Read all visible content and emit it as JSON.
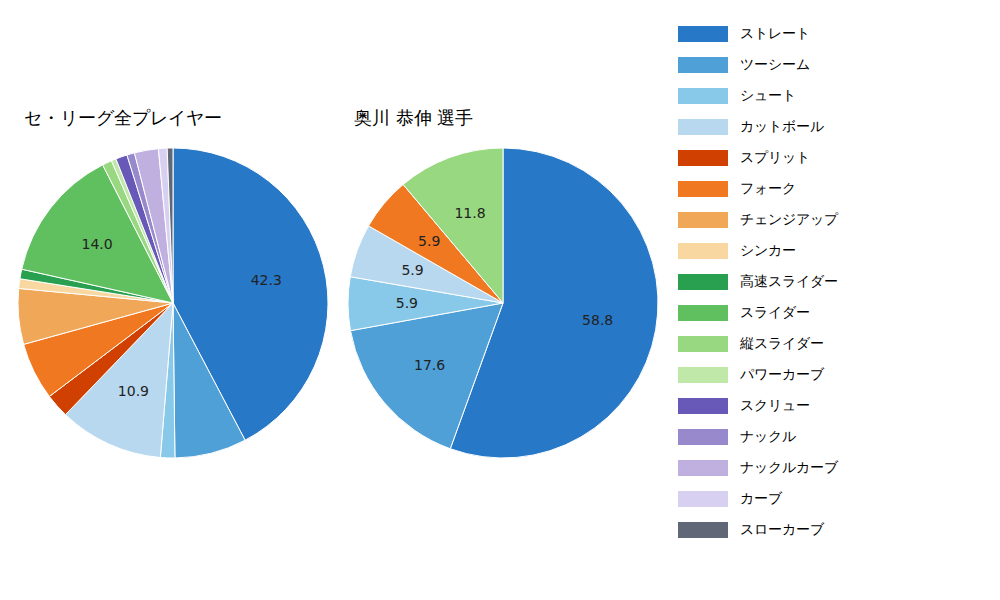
{
  "chart_data": [
    {
      "type": "pie",
      "title": "セ・リーグ全プレイヤー",
      "categories": [
        "ストレート",
        "ツーシーム",
        "シュート",
        "カットボール",
        "スプリット",
        "フォーク",
        "チェンジアップ",
        "シンカー",
        "高速スライダー",
        "スライダー",
        "縦スライダー",
        "パワーカーブ",
        "スクリュー",
        "ナックル",
        "ナックルカーブ",
        "カーブ",
        "スローカーブ"
      ],
      "values": [
        42.3,
        7.5,
        1.5,
        10.9,
        2.5,
        6.0,
        5.8,
        1.0,
        1.0,
        14.0,
        1.0,
        0.5,
        1.2,
        0.8,
        2.5,
        0.9,
        0.6
      ],
      "value_labels": [
        "42.3",
        null,
        null,
        "10.9",
        null,
        null,
        null,
        null,
        null,
        "14.0",
        null,
        null,
        null,
        null,
        null,
        null,
        null
      ],
      "colors": [
        "#2878c8",
        "#50a0d8",
        "#88c8e8",
        "#b8d8f0",
        "#d04000",
        "#f07820",
        "#f0a858",
        "#f8d8a0",
        "#28a050",
        "#60c060",
        "#98d880",
        "#c0e8a8",
        "#6858b8",
        "#9888cc",
        "#c0b0e0",
        "#d8d0f0",
        "#606878"
      ],
      "legend": "right"
    },
    {
      "type": "pie",
      "title": "奥川 恭伸  選手",
      "categories": [
        "ストレート",
        "ツーシーム",
        "シュート",
        "カットボール",
        "フォーク",
        "縦スライダー"
      ],
      "values": [
        58.8,
        17.6,
        5.9,
        5.9,
        5.9,
        11.8
      ],
      "value_labels": [
        "58.8",
        "17.6",
        "5.9",
        "5.9",
        "5.9",
        "11.8"
      ],
      "colors": [
        "#2878c8",
        "#50a0d8",
        "#88c8e8",
        "#b8d8f0",
        "#f07820",
        "#98d880"
      ]
    }
  ]
}
